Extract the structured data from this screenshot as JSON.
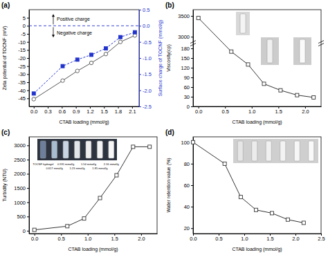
{
  "chart_data": [
    {
      "type": "line",
      "title": "(a)",
      "x_label": "CTAB loading (mmol/g)",
      "y_label": "Zeta potential of TOCNF (mV)",
      "y2_label": "Surface charge of TOCNF (mmol/g)",
      "x": [
        0,
        0.617,
        0.931,
        1.23,
        1.54,
        1.85,
        2.16
      ],
      "series": [
        {
          "color": "#555555",
          "marker": "circle-open",
          "line_style": "solid",
          "values": [
            -45.5,
            -34,
            -28,
            -23,
            -17.5,
            -10,
            -6
          ]
        },
        {
          "color": "#2233cc",
          "marker": "square",
          "line_style": "dashed",
          "axis": "y2",
          "values": [
            -2.1,
            -1.25,
            -1.05,
            -0.9,
            -0.7,
            -0.35,
            -0.2
          ]
        }
      ],
      "xlim": [
        -0.1,
        2.25
      ],
      "xticks": [
        {
          "value": 0,
          "label": "0.0"
        },
        0.3,
        0.6,
        0.9,
        1.2,
        1.5,
        1.8,
        2.1
      ],
      "ylim": [
        -50,
        10
      ],
      "yticks": [
        -45,
        -40,
        -35,
        -30,
        -25,
        -20,
        -15,
        -10,
        -5,
        0,
        5
      ],
      "y2lim": [
        -2.5,
        0.5
      ],
      "y2ticks": [
        0.5,
        {
          "value": 0,
          "label": "0.0"
        },
        -0.5,
        {
          "value": -1,
          "label": "-1.0"
        },
        -1.5,
        {
          "value": -2,
          "label": "-2.0"
        },
        -2.5
      ],
      "hline": 0,
      "annotations": [
        "Positive charge",
        "Negative charge"
      ]
    },
    {
      "type": "line",
      "title": "(b)",
      "x_label": "CTAB loading (mmol/g)",
      "y_label": "Viscosity(cp)",
      "x": [
        0,
        0.617,
        0.931,
        1.23,
        1.54,
        1.85,
        2.16
      ],
      "series": [
        {
          "color": "#333333",
          "marker": "square-open",
          "line_style": "solid",
          "values": [
            3450,
            170,
            130,
            70,
            50,
            35,
            28
          ]
        }
      ],
      "xlim": [
        -0.1,
        2.3
      ],
      "xticks": [
        {
          "value": 0,
          "label": "0.0"
        },
        0.5,
        {
          "value": 1,
          "label": "1.0"
        },
        1.5,
        {
          "value": 2,
          "label": "2.0"
        }
      ],
      "ylim": [
        0,
        3650
      ],
      "yticks": [
        0,
        30,
        60,
        90,
        120,
        150,
        180,
        3000,
        3500
      ]
    },
    {
      "type": "line",
      "title": "(c)",
      "x_label": "CTAB loading (mmol/g)",
      "y_label": "Turbidity (NTU)",
      "x": [
        0,
        0.617,
        0.931,
        1.23,
        1.54,
        1.85,
        2.16
      ],
      "series": [
        {
          "color": "#333333",
          "marker": "square-open",
          "line_style": "solid",
          "values": [
            30,
            160,
            430,
            1150,
            1950,
            2950,
            2950
          ]
        }
      ],
      "xlim": [
        -0.1,
        2.3
      ],
      "xticks": [
        {
          "value": 0,
          "label": "0.0"
        },
        0.5,
        {
          "value": 1,
          "label": "1.0"
        },
        1.5,
        {
          "value": 2,
          "label": "2.0"
        }
      ],
      "ylim": [
        -100,
        3300
      ],
      "yticks": [
        0,
        500,
        1000,
        1500,
        2000,
        2500,
        3000
      ],
      "annotations": [
        "TOCNF hydrogel",
        "0.617 mmol/g",
        "0.931 mmol/g",
        "1.23 mmol/g",
        "1.54 mmol/g",
        "1.85 mmol/g",
        "2.16 mmol/g"
      ]
    },
    {
      "type": "line",
      "title": "(d)",
      "x_label": "CTAB loading (mmol/g)",
      "y_label": "Water retention value (%)",
      "x": [
        0,
        0.617,
        0.931,
        1.23,
        1.54,
        1.85,
        2.16
      ],
      "series": [
        {
          "color": "#333333",
          "marker": "square-open",
          "line_style": "solid",
          "values": [
            100,
            80,
            49,
            37,
            34,
            28,
            25
          ]
        }
      ],
      "xlim": [
        0,
        2.5
      ],
      "xticks": [
        {
          "value": 0,
          "label": "0.0"
        },
        0.5,
        {
          "value": 1,
          "label": "1.0"
        },
        1.5,
        {
          "value": 2,
          "label": "2.0"
        },
        2.5
      ],
      "ylim": [
        15,
        105
      ],
      "yticks": [
        20,
        40,
        60,
        80,
        100
      ]
    }
  ]
}
